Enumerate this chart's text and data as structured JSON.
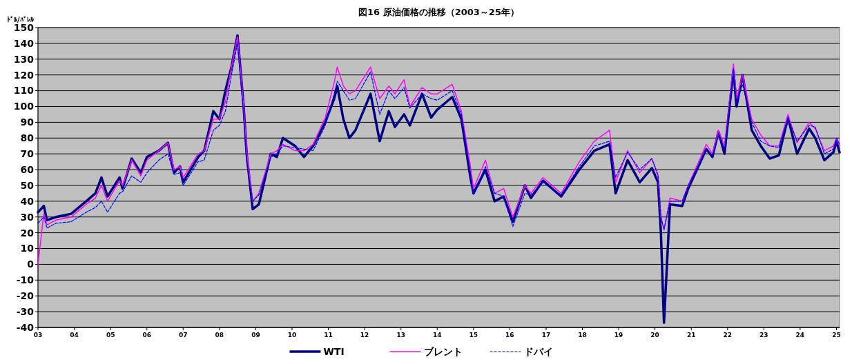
{
  "chart_data": {
    "type": "line",
    "title": "図16 原油価格の推移（2003～25年）",
    "ylabel": "ﾄﾞﾙ/ﾊﾞﾚﾙ",
    "x": [
      "2003-01",
      "2003-03",
      "2003-04",
      "2003-07",
      "2003-12",
      "2004-05",
      "2004-08",
      "2004-10",
      "2004-12",
      "2005-04",
      "2005-05",
      "2005-08",
      "2005-11",
      "2006-01",
      "2006-05",
      "2006-08",
      "2006-10",
      "2006-12",
      "2007-01",
      "2007-06",
      "2007-08",
      "2007-11",
      "2008-01",
      "2008-03",
      "2008-05",
      "2008-07",
      "2008-09",
      "2008-10",
      "2008-12",
      "2009-02",
      "2009-06",
      "2009-08",
      "2009-10",
      "2010-02",
      "2010-05",
      "2010-08",
      "2010-12",
      "2011-03",
      "2011-04",
      "2011-06",
      "2011-08",
      "2011-10",
      "2012-03",
      "2012-06",
      "2012-09",
      "2012-11",
      "2013-02",
      "2013-04",
      "2013-08",
      "2013-11",
      "2014-01",
      "2014-06",
      "2014-09",
      "2014-12",
      "2015-01",
      "2015-05",
      "2015-08",
      "2015-11",
      "2016-02",
      "2016-06",
      "2016-08",
      "2016-12",
      "2017-06",
      "2017-12",
      "2018-05",
      "2018-10",
      "2018-12",
      "2019-04",
      "2019-08",
      "2019-12",
      "2020-02",
      "2020-03",
      "2020-04",
      "2020-06",
      "2020-10",
      "2020-12",
      "2021-06",
      "2021-08",
      "2021-10",
      "2021-12",
      "2022-03",
      "2022-04",
      "2022-06",
      "2022-09",
      "2022-12",
      "2023-03",
      "2023-06",
      "2023-09",
      "2023-12",
      "2024-04",
      "2024-06",
      "2024-09",
      "2024-12",
      "2025-01",
      "2025-02"
    ],
    "series": [
      {
        "name": "WTI",
        "color": "#000080",
        "values": [
          33,
          37,
          28,
          30,
          32,
          40,
          45,
          55,
          43,
          55,
          48,
          67,
          58,
          68,
          72,
          77,
          58,
          62,
          52,
          68,
          72,
          97,
          92,
          110,
          125,
          145,
          100,
          70,
          35,
          38,
          70,
          68,
          80,
          75,
          68,
          75,
          90,
          105,
          113,
          92,
          80,
          85,
          108,
          78,
          97,
          87,
          95,
          88,
          108,
          93,
          98,
          106,
          92,
          55,
          45,
          60,
          40,
          43,
          27,
          50,
          42,
          53,
          43,
          60,
          72,
          76,
          45,
          66,
          52,
          61,
          52,
          20,
          -37,
          38,
          37,
          48,
          73,
          68,
          84,
          70,
          123,
          100,
          120,
          85,
          75,
          67,
          69,
          93,
          70,
          86,
          80,
          66,
          71,
          78,
          71
        ]
      },
      {
        "name": "ブレント",
        "color": "#ff00ff",
        "values": [
          0,
          32,
          25,
          28,
          30,
          38,
          42,
          50,
          40,
          53,
          50,
          66,
          56,
          66,
          72,
          77,
          60,
          62,
          55,
          70,
          72,
          92,
          92,
          103,
          125,
          144,
          100,
          72,
          40,
          45,
          70,
          72,
          76,
          72,
          72,
          76,
          93,
          115,
          125,
          113,
          108,
          110,
          125,
          105,
          113,
          108,
          117,
          100,
          112,
          108,
          108,
          114,
          97,
          62,
          48,
          66,
          45,
          48,
          30,
          50,
          45,
          55,
          45,
          65,
          78,
          85,
          52,
          72,
          58,
          67,
          57,
          30,
          22,
          42,
          40,
          50,
          76,
          70,
          85,
          75,
          127,
          105,
          120,
          92,
          82,
          75,
          75,
          95,
          77,
          90,
          86,
          72,
          75,
          80,
          75
        ]
      },
      {
        "name": "ドバイ",
        "color": "#0000ff",
        "line_style": "dashed",
        "values": [
          26,
          30,
          23,
          26,
          27,
          33,
          36,
          40,
          33,
          45,
          46,
          56,
          52,
          58,
          66,
          70,
          57,
          58,
          50,
          65,
          66,
          85,
          88,
          97,
          120,
          140,
          95,
          65,
          40,
          44,
          68,
          70,
          75,
          74,
          73,
          72,
          88,
          108,
          116,
          110,
          104,
          105,
          122,
          95,
          110,
          105,
          112,
          99,
          108,
          105,
          104,
          110,
          95,
          58,
          44,
          62,
          45,
          43,
          24,
          45,
          44,
          52,
          44,
          62,
          75,
          78,
          55,
          71,
          60,
          67,
          56,
          30,
          22,
          40,
          40,
          50,
          73,
          69,
          82,
          73,
          124,
          102,
          114,
          90,
          78,
          75,
          74,
          93,
          78,
          88,
          87,
          70,
          73,
          80,
          76
        ]
      }
    ],
    "xlim": [
      "2003-01",
      "2025-02"
    ],
    "xticks": [
      {
        "value": "2003",
        "label": "03"
      },
      {
        "value": "2004",
        "label": "04"
      },
      {
        "value": "2005",
        "label": "05"
      },
      {
        "value": "2006",
        "label": "06"
      },
      {
        "value": "2007",
        "label": "07"
      },
      {
        "value": "2008",
        "label": "08"
      },
      {
        "value": "2009",
        "label": "09"
      },
      {
        "value": "2010",
        "label": "10"
      },
      {
        "value": "2011",
        "label": "11"
      },
      {
        "value": "2012",
        "label": "12"
      },
      {
        "value": "2013",
        "label": "13"
      },
      {
        "value": "2014",
        "label": "14"
      },
      {
        "value": "2015",
        "label": "15"
      },
      {
        "value": "2016",
        "label": "16"
      },
      {
        "value": "2017",
        "label": "17"
      },
      {
        "value": "2018",
        "label": "18"
      },
      {
        "value": "2019",
        "label": "19"
      },
      {
        "value": "2020",
        "label": "20"
      },
      {
        "value": "2021",
        "label": "21"
      },
      {
        "value": "2022",
        "label": "22"
      },
      {
        "value": "2023",
        "label": "23"
      },
      {
        "value": "2024",
        "label": "24"
      },
      {
        "value": "2025",
        "label": "25"
      }
    ],
    "ylim": [
      -40,
      150
    ],
    "yticks": [
      -40,
      -30,
      -20,
      -10,
      0,
      10,
      20,
      30,
      40,
      50,
      60,
      70,
      80,
      90,
      100,
      110,
      120,
      130,
      140,
      150
    ],
    "grid": "y",
    "legend": "bottom",
    "line_style": "solid"
  }
}
